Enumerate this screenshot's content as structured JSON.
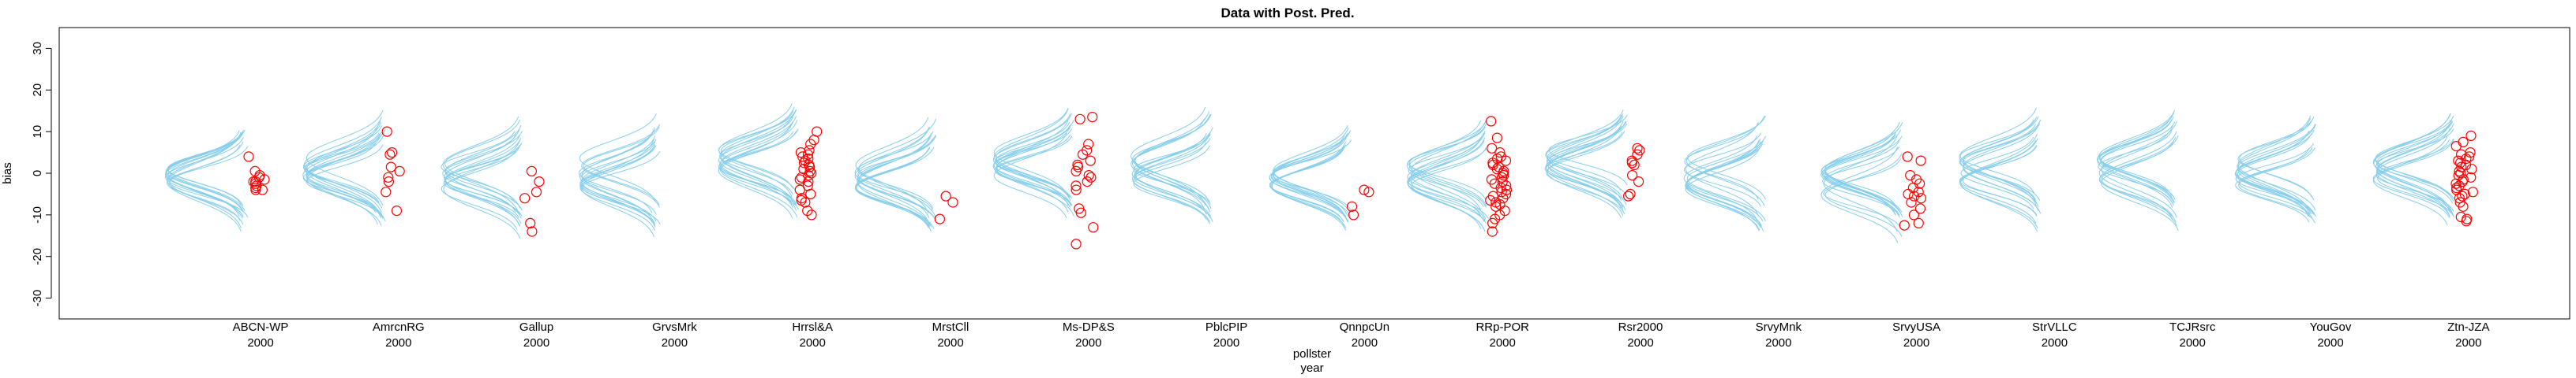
{
  "chart_data": {
    "type": "scatter",
    "title": "Data with Post. Pred.",
    "xlabel": [
      "pollster",
      "year"
    ],
    "ylabel": "bias",
    "ylim": [
      -35,
      35
    ],
    "yticks": [
      -30,
      -20,
      -10,
      0,
      10,
      20,
      30
    ],
    "grid": false,
    "legend": "none",
    "colors": {
      "predictive_curves": "#87ceeb",
      "observed_points": "#ff0000"
    },
    "groups": [
      {
        "pollster": "ABCN-WP",
        "year": "2000",
        "center": 0.0,
        "spread_low": -9,
        "spread_high": 9,
        "points": [
          4.0,
          0.5,
          -0.5,
          -1.0,
          -1.5,
          -2.0,
          -2.5,
          -3.0,
          -3.5,
          -4.0,
          -4.0,
          -2.0
        ]
      },
      {
        "pollster": "AmrcnRG",
        "year": "2000",
        "center": 1.0,
        "spread_low": -8,
        "spread_high": 10,
        "points": [
          10.0,
          5.0,
          4.5,
          1.5,
          0.5,
          -1.0,
          -2.0,
          -4.5,
          -9.0
        ]
      },
      {
        "pollster": "Gallup",
        "year": "2000",
        "center": -1.0,
        "spread_low": -11,
        "spread_high": 8,
        "points": [
          0.5,
          -2.0,
          -4.5,
          -6.0,
          -12.0,
          -14.0
        ]
      },
      {
        "pollster": "GrvsMrk",
        "year": "2000",
        "center": 0.0,
        "spread_low": -11,
        "spread_high": 10,
        "points": []
      },
      {
        "pollster": "Hrrsl&A",
        "year": "2000",
        "center": 3.0,
        "spread_low": -7,
        "spread_high": 9,
        "points": [
          10.0,
          8.0,
          7.0,
          5.5,
          5.0,
          4.5,
          4.0,
          3.5,
          3.0,
          2.5,
          2.0,
          1.5,
          1.0,
          0.5,
          0.0,
          -0.5,
          -1.0,
          -1.5,
          -2.0,
          -3.0,
          -4.0,
          -5.0,
          -6.0,
          -6.5,
          -7.0,
          -9.0,
          -10.0
        ]
      },
      {
        "pollster": "MrstCll",
        "year": "2000",
        "center": -1.0,
        "spread_low": -10,
        "spread_high": 8,
        "points": [
          -5.5,
          -7.0,
          -11.0
        ]
      },
      {
        "pollster": "Ms-DP&S",
        "year": "2000",
        "center": 2.0,
        "spread_low": -8,
        "spread_high": 10,
        "points": [
          13.5,
          13.0,
          7.0,
          5.5,
          4.5,
          3.0,
          2.0,
          1.5,
          0.5,
          -0.5,
          -1.0,
          -2.0,
          -3.0,
          -4.0,
          -8.5,
          -9.5,
          -13.0,
          -17.0
        ]
      },
      {
        "pollster": "PblcPIP",
        "year": "2000",
        "center": 1.0,
        "spread_low": -10,
        "spread_high": 11,
        "points": []
      },
      {
        "pollster": "QnnpcUn",
        "year": "2000",
        "center": -1.0,
        "spread_low": -9,
        "spread_high": 7,
        "points": [
          -4.0,
          -4.5,
          -8.0,
          -10.0
        ]
      },
      {
        "pollster": "RRp-POR",
        "year": "2000",
        "center": 0.0,
        "spread_low": -9,
        "spread_high": 8,
        "points": [
          12.5,
          8.5,
          6.0,
          5.0,
          4.0,
          3.5,
          3.0,
          2.5,
          2.0,
          1.5,
          1.0,
          0.5,
          0.0,
          -0.5,
          -1.0,
          -1.5,
          -2.0,
          -2.5,
          -3.0,
          -3.5,
          -4.0,
          -4.5,
          -5.0,
          -5.5,
          -6.0,
          -6.5,
          -7.0,
          -7.5,
          -8.0,
          -9.0,
          -10.0,
          -11.0,
          -12.0,
          -14.0
        ]
      },
      {
        "pollster": "Rsr2000",
        "year": "2000",
        "center": 3.0,
        "spread_low": -6,
        "spread_high": 11,
        "points": [
          6.0,
          5.5,
          4.5,
          3.0,
          2.5,
          2.0,
          -0.5,
          -2.0,
          -5.0,
          -5.5
        ]
      },
      {
        "pollster": "SrvyMnk",
        "year": "2000",
        "center": 0.0,
        "spread_low": -11,
        "spread_high": 11,
        "points": []
      },
      {
        "pollster": "SrvyUSA",
        "year": "2000",
        "center": -2.0,
        "spread_low": -11,
        "spread_high": 8,
        "points": [
          4.0,
          3.0,
          -0.5,
          -1.5,
          -2.5,
          -3.5,
          -4.5,
          -5.0,
          -5.5,
          -6.0,
          -7.0,
          -8.5,
          -10.0,
          -12.0,
          -12.5
        ]
      },
      {
        "pollster": "StrVLLC",
        "year": "2000",
        "center": 1.0,
        "spread_low": -10,
        "spread_high": 10,
        "points": []
      },
      {
        "pollster": "TCJRsrc",
        "year": "2000",
        "center": 1.0,
        "spread_low": -9,
        "spread_high": 11,
        "points": []
      },
      {
        "pollster": "YouGov",
        "year": "2000",
        "center": 0.0,
        "spread_low": -11,
        "spread_high": 10,
        "points": []
      },
      {
        "pollster": "Ztn-JZA",
        "year": "2000",
        "center": 1.0,
        "spread_low": -8,
        "spread_high": 9,
        "points": [
          9.0,
          7.5,
          6.5,
          5.0,
          4.5,
          4.0,
          3.5,
          3.0,
          2.5,
          2.0,
          1.5,
          1.0,
          0.5,
          0.0,
          -0.5,
          -1.0,
          -1.5,
          -2.0,
          -2.5,
          -3.0,
          -3.5,
          -4.0,
          -4.5,
          -5.0,
          -5.5,
          -6.0,
          -7.0,
          -8.0,
          -10.5,
          -11.0,
          -11.5
        ]
      }
    ]
  }
}
